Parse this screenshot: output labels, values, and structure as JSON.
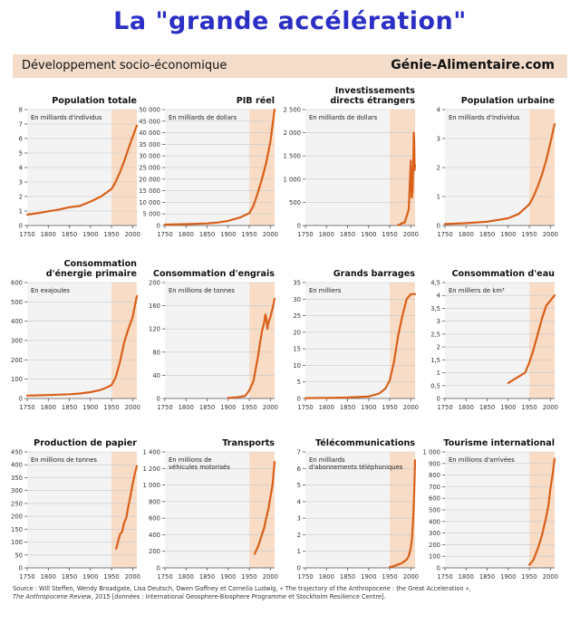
{
  "header": {
    "title": "La \"grande accélération\"",
    "subtitle": "Développement socio-économique",
    "site": "Génie-Alimentaire.com"
  },
  "source": {
    "line1": "Source : Will Steffen, Wendy Broadgate, Lisa Deutsch, Owen Gaffney et Cornelia Ludwig, « The trajectory of the Anthropocene : the Great Acceleration »,",
    "line2_italic": "The Anthropocene Review",
    "line2_rest": ", 2015 [données : International Geosphere-Biosphere Programme et Stockholm Resilience Centre]."
  },
  "colors": {
    "line": "#d9601a",
    "shade": "#f8dcc6",
    "plot_bg": "#f3f3f3",
    "grid": "#c8c8c8",
    "axis": "#555555",
    "title_blue": "#2b2fc4"
  },
  "chart_data": [
    {
      "type": "line",
      "title": "Population totale",
      "unit": "En milliards d'individus",
      "xlim": [
        1750,
        2010
      ],
      "ylim": [
        0,
        8
      ],
      "yticks": [
        "0",
        "1",
        "2",
        "3",
        "4",
        "5",
        "6",
        "7",
        "8"
      ],
      "xticks": [
        "1750",
        "1800",
        "1850",
        "1900",
        "1950",
        "2000"
      ],
      "shade_from": 1950,
      "x": [
        1750,
        1775,
        1800,
        1825,
        1850,
        1875,
        1900,
        1925,
        1950,
        1960,
        1970,
        1980,
        1990,
        2000,
        2010
      ],
      "y": [
        0.75,
        0.85,
        0.98,
        1.1,
        1.26,
        1.35,
        1.65,
        2.0,
        2.52,
        3.02,
        3.68,
        4.44,
        5.3,
        6.1,
        6.9
      ]
    },
    {
      "type": "line",
      "title": "PIB réel",
      "unit": "En milliards de dollars",
      "xlim": [
        1750,
        2010
      ],
      "ylim": [
        0,
        50000
      ],
      "yticks": [
        "0",
        "5 000",
        "10 000",
        "15 000",
        "20 000",
        "25 000",
        "30 000",
        "35 000",
        "40 000",
        "45 000",
        "50 000"
      ],
      "xticks": [
        "1750",
        "1800",
        "1850",
        "1900",
        "1950",
        "2000"
      ],
      "shade_from": 1950,
      "x": [
        1750,
        1800,
        1850,
        1875,
        1900,
        1913,
        1930,
        1940,
        1950,
        1960,
        1970,
        1980,
        1990,
        2000,
        2010
      ],
      "y": [
        400,
        600,
        900,
        1300,
        2000,
        2700,
        3600,
        4500,
        5300,
        8500,
        14000,
        20000,
        27000,
        36000,
        50000
      ]
    },
    {
      "type": "line",
      "title": "Investissements directs étrangers",
      "unit": "En milliards de dollars",
      "xlim": [
        1750,
        2010
      ],
      "ylim": [
        0,
        2500
      ],
      "yticks": [
        "0",
        "500",
        "1 000",
        "1 500",
        "2 000",
        "2 500"
      ],
      "xticks": [
        "1750",
        "1800",
        "1850",
        "1900",
        "1950",
        "2000"
      ],
      "shade_from": 1950,
      "x": [
        1970,
        1975,
        1980,
        1985,
        1990,
        1995,
        2000,
        2002,
        2004,
        2006,
        2007,
        2008,
        2009,
        2010
      ],
      "y": [
        10,
        25,
        55,
        60,
        200,
        340,
        1400,
        600,
        740,
        1400,
        2000,
        1800,
        1200,
        1300
      ]
    },
    {
      "type": "line",
      "title": "Population urbaine",
      "unit": "En milliards d'individus",
      "xlim": [
        1750,
        2010
      ],
      "ylim": [
        0,
        4
      ],
      "yticks": [
        "0",
        "1",
        "2",
        "3",
        "4"
      ],
      "xticks": [
        "1750",
        "1800",
        "1850",
        "1900",
        "1950",
        "2000"
      ],
      "shade_from": 1950,
      "x": [
        1750,
        1800,
        1850,
        1900,
        1925,
        1950,
        1960,
        1970,
        1980,
        1990,
        2000,
        2010
      ],
      "y": [
        0.05,
        0.08,
        0.13,
        0.25,
        0.4,
        0.73,
        1.0,
        1.35,
        1.75,
        2.25,
        2.85,
        3.5
      ]
    },
    {
      "type": "line",
      "title": "Consommation d'énergie primaire",
      "unit": "En exajoules",
      "xlim": [
        1750,
        2010
      ],
      "ylim": [
        0,
        600
      ],
      "yticks": [
        "0",
        "100",
        "200",
        "300",
        "400",
        "500",
        "600"
      ],
      "xticks": [
        "1750",
        "1800",
        "1850",
        "1900",
        "1950",
        "2000"
      ],
      "shade_from": 1950,
      "x": [
        1750,
        1800,
        1850,
        1875,
        1900,
        1925,
        1940,
        1950,
        1960,
        1970,
        1980,
        1990,
        2000,
        2010
      ],
      "y": [
        15,
        18,
        22,
        26,
        33,
        45,
        58,
        70,
        110,
        190,
        290,
        360,
        420,
        530
      ]
    },
    {
      "type": "line",
      "title": "Consommation d'engrais",
      "unit": "En millions de tonnes",
      "xlim": [
        1750,
        2010
      ],
      "ylim": [
        0,
        200
      ],
      "yticks": [
        "0",
        "40",
        "80",
        "120",
        "160",
        "200"
      ],
      "xticks": [
        "1750",
        "1800",
        "1850",
        "1900",
        "1950",
        "2000"
      ],
      "shade_from": 1950,
      "x": [
        1900,
        1920,
        1940,
        1950,
        1960,
        1970,
        1980,
        1985,
        1988,
        1990,
        1993,
        1995,
        2000,
        2005,
        2010
      ],
      "y": [
        1,
        2,
        4,
        14,
        30,
        70,
        116,
        130,
        145,
        140,
        120,
        130,
        140,
        155,
        172
      ]
    },
    {
      "type": "line",
      "title": "Grands barrages",
      "unit": "En milliers",
      "xlim": [
        1750,
        2010
      ],
      "ylim": [
        0,
        35
      ],
      "yticks": [
        "0",
        "5",
        "10",
        "15",
        "20",
        "25",
        "30",
        "35"
      ],
      "xticks": [
        "1750",
        "1800",
        "1850",
        "1900",
        "1950",
        "2000"
      ],
      "shade_from": 1950,
      "x": [
        1750,
        1800,
        1850,
        1900,
        1925,
        1940,
        1950,
        1960,
        1970,
        1980,
        1990,
        2000,
        2010
      ],
      "y": [
        0.1,
        0.2,
        0.3,
        0.6,
        1.5,
        3,
        5.5,
        11,
        19,
        25,
        30,
        31.5,
        31.5
      ]
    },
    {
      "type": "line",
      "title": "Consommation d'eau",
      "unit": "En milliers de km³",
      "xlim": [
        1750,
        2010
      ],
      "ylim": [
        0,
        4.5
      ],
      "yticks": [
        "0",
        "0,5",
        "1",
        "1,5",
        "2",
        "2,5",
        "3",
        "3,5",
        "4",
        "4,5"
      ],
      "xticks": [
        "1750",
        "1800",
        "1850",
        "1900",
        "1950",
        "2000"
      ],
      "shade_from": 1950,
      "x": [
        1900,
        1920,
        1940,
        1950,
        1960,
        1970,
        1980,
        1990,
        2000,
        2010
      ],
      "y": [
        0.6,
        0.8,
        1.0,
        1.4,
        1.9,
        2.5,
        3.1,
        3.6,
        3.8,
        4.0
      ]
    },
    {
      "type": "line",
      "title": "Production de papier",
      "unit": "En millions de tonnes",
      "xlim": [
        1750,
        2010
      ],
      "ylim": [
        0,
        450
      ],
      "yticks": [
        "0",
        "50",
        "100",
        "150",
        "200",
        "250",
        "300",
        "350",
        "400",
        "450"
      ],
      "xticks": [
        "1750",
        "1800",
        "1850",
        "1900",
        "1950",
        "2000"
      ],
      "shade_from": 1950,
      "x": [
        1961,
        1965,
        1970,
        1975,
        1980,
        1985,
        1990,
        1995,
        2000,
        2005,
        2010
      ],
      "y": [
        75,
        100,
        130,
        140,
        175,
        195,
        240,
        280,
        325,
        365,
        395
      ]
    },
    {
      "type": "line",
      "title": "Transports",
      "unit": "En millions de véhicules motorisés",
      "xlim": [
        1750,
        2010
      ],
      "ylim": [
        0,
        1400
      ],
      "yticks": [
        "0",
        "200",
        "400",
        "600",
        "800",
        "1 000",
        "1 200",
        "1 400"
      ],
      "xticks": [
        "1750",
        "1800",
        "1850",
        "1900",
        "1950",
        "2000"
      ],
      "shade_from": 1950,
      "x": [
        1963,
        1970,
        1975,
        1980,
        1985,
        1990,
        1995,
        2000,
        2005,
        2010
      ],
      "y": [
        170,
        250,
        320,
        400,
        480,
        600,
        700,
        850,
        1000,
        1280
      ]
    },
    {
      "type": "line",
      "title": "Télécommunications",
      "unit": "En milliards d'abonnements téléphoniques",
      "xlim": [
        1750,
        2010
      ],
      "ylim": [
        0,
        7
      ],
      "yticks": [
        "0",
        "1",
        "2",
        "3",
        "4",
        "5",
        "6",
        "7"
      ],
      "xticks": [
        "1750",
        "1800",
        "1850",
        "1900",
        "1950",
        "2000"
      ],
      "shade_from": 1950,
      "x": [
        1950,
        1960,
        1970,
        1980,
        1990,
        1995,
        2000,
        2003,
        2006,
        2008,
        2010
      ],
      "y": [
        0.05,
        0.1,
        0.2,
        0.3,
        0.5,
        0.7,
        1.2,
        1.8,
        3.2,
        4.6,
        6.5
      ]
    },
    {
      "type": "line",
      "title": "Tourisme international",
      "unit": "En millions d'arrivées",
      "xlim": [
        1750,
        2010
      ],
      "ylim": [
        0,
        1000
      ],
      "yticks": [
        "0",
        "100",
        "200",
        "300",
        "400",
        "500",
        "600",
        "700",
        "800",
        "900",
        "1 000"
      ],
      "xticks": [
        "1750",
        "1800",
        "1850",
        "1900",
        "1950",
        "2000"
      ],
      "shade_from": 1950,
      "x": [
        1950,
        1960,
        1970,
        1980,
        1990,
        1995,
        2000,
        2005,
        2010
      ],
      "y": [
        25,
        70,
        165,
        280,
        440,
        530,
        680,
        800,
        940
      ]
    }
  ]
}
